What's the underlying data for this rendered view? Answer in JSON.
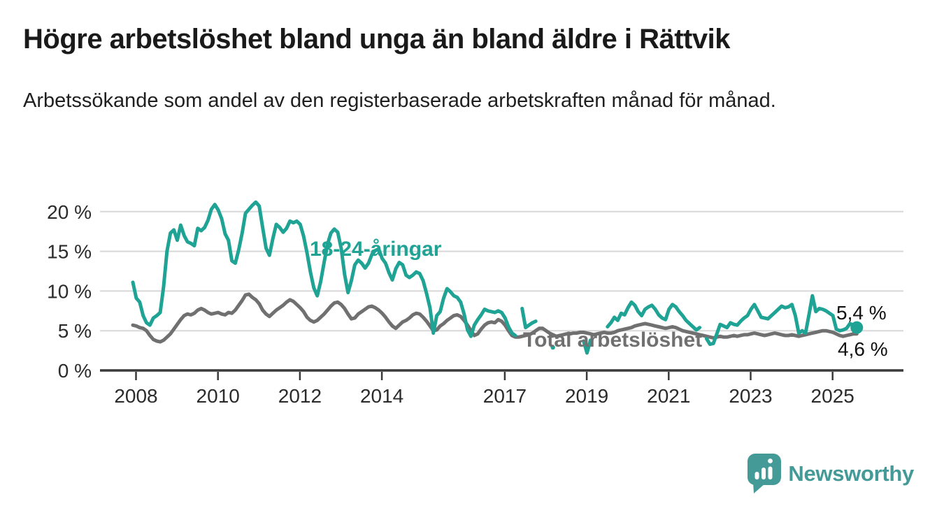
{
  "header": {
    "title": "Högre arbetslöshet bland unga än bland äldre i Rättvik",
    "subtitle": "Arbetssökande som andel av den registerbaserade arbetskraften månad för månad."
  },
  "footer": {
    "brand": "Newsworthy"
  },
  "colors": {
    "youth": "#1fa394",
    "total": "#707070",
    "axis": "#3a3a3a",
    "grid": "#d8d8d8",
    "tick_text": "#2b2b2b",
    "end_label_text": "#111111",
    "logo": "#449a96"
  },
  "chart_data": {
    "type": "line",
    "title": "Högre arbetslöshet bland unga än bland äldre i Rättvik",
    "subtitle": "Arbetssökande som andel av den registerbaserade arbetskraften månad för månad.",
    "frequency": "monthly",
    "x_start": "2008-01",
    "x_end": "2025-09",
    "ylim": [
      0,
      22
    ],
    "grid": true,
    "legend_position": "inline-labels",
    "y_ticks": [
      "0 %",
      "5 %",
      "10 %",
      "15 %",
      "20 %"
    ],
    "y_tick_values": [
      0,
      5,
      10,
      15,
      20
    ],
    "x_tick_years": [
      2008,
      2010,
      2012,
      2014,
      2017,
      2019,
      2021,
      2023,
      2025
    ],
    "series": [
      {
        "name": "Total arbetslöshet",
        "color": "#707070",
        "end_label": "4,6 %",
        "end_value": 4.6,
        "end_dot": false,
        "values": [
          5.7,
          5.6,
          5.4,
          5.3,
          5.0,
          4.4,
          3.9,
          3.7,
          3.6,
          3.8,
          4.2,
          4.6,
          5.2,
          5.8,
          6.4,
          6.9,
          7.1,
          7.0,
          7.2,
          7.6,
          7.8,
          7.6,
          7.3,
          7.1,
          7.2,
          7.3,
          7.1,
          7.0,
          7.3,
          7.2,
          7.6,
          8.2,
          8.8,
          9.5,
          9.6,
          9.2,
          8.9,
          8.4,
          7.6,
          7.1,
          6.8,
          7.2,
          7.6,
          7.9,
          8.2,
          8.6,
          8.9,
          8.7,
          8.3,
          7.9,
          7.4,
          6.7,
          6.3,
          6.1,
          6.3,
          6.7,
          7.1,
          7.6,
          8.1,
          8.5,
          8.6,
          8.3,
          7.8,
          7.1,
          6.5,
          6.6,
          7.1,
          7.4,
          7.7,
          8.0,
          8.1,
          7.9,
          7.6,
          7.2,
          6.7,
          6.1,
          5.6,
          5.3,
          5.7,
          6.1,
          6.3,
          6.6,
          7.0,
          7.2,
          7.1,
          6.7,
          6.2,
          5.6,
          5.0,
          5.1,
          5.6,
          5.9,
          6.3,
          6.6,
          6.9,
          7.0,
          6.8,
          6.3,
          5.7,
          5.0,
          4.4,
          4.6,
          5.2,
          5.7,
          6.0,
          6.1,
          6.0,
          6.4,
          6.2,
          5.7,
          5.0,
          4.4,
          4.2,
          4.2,
          4.3,
          4.4,
          4.5,
          4.7,
          5.0,
          5.3,
          5.3,
          5.0,
          4.7,
          4.5,
          4.3,
          4.4,
          4.5,
          4.6,
          4.6,
          4.7,
          4.7,
          4.8,
          4.8,
          4.7,
          4.6,
          4.5,
          4.6,
          4.7,
          4.8,
          4.7,
          4.7,
          4.8,
          5.0,
          5.1,
          5.2,
          5.3,
          5.4,
          5.6,
          5.7,
          5.8,
          5.9,
          5.8,
          5.7,
          5.6,
          5.5,
          5.4,
          5.3,
          5.4,
          5.5,
          5.4,
          5.2,
          5.0,
          4.9,
          4.8,
          4.7,
          4.6,
          4.5,
          4.4,
          4.3,
          4.2,
          4.1,
          4.2,
          4.3,
          4.2,
          4.2,
          4.3,
          4.4,
          4.3,
          4.4,
          4.5,
          4.5,
          4.6,
          4.7,
          4.6,
          4.5,
          4.4,
          4.5,
          4.6,
          4.7,
          4.6,
          4.5,
          4.4,
          4.4,
          4.5,
          4.4,
          4.3,
          4.4,
          4.5,
          4.6,
          4.7,
          4.8,
          4.9,
          5.0,
          5.0,
          4.9,
          4.8,
          4.6,
          4.4,
          4.3,
          4.4,
          4.5,
          4.6,
          4.6
        ]
      },
      {
        "name": "18-24-åringar",
        "color": "#1fa394",
        "end_label": "5,4 %",
        "end_value": 5.4,
        "end_dot": true,
        "values": [
          11.1,
          9.1,
          8.6,
          6.9,
          6.0,
          5.7,
          6.6,
          6.9,
          7.3,
          10.5,
          15.0,
          17.3,
          17.7,
          16.4,
          18.3,
          17.0,
          16.2,
          16.0,
          15.7,
          17.9,
          17.6,
          18.0,
          18.9,
          20.3,
          20.9,
          20.2,
          19.1,
          17.2,
          16.4,
          13.8,
          13.5,
          15.2,
          17.3,
          19.8,
          20.3,
          20.8,
          21.2,
          20.7,
          18.0,
          15.4,
          14.5,
          16.6,
          18.4,
          18.0,
          17.4,
          17.9,
          18.8,
          18.6,
          18.8,
          18.4,
          16.9,
          14.8,
          12.4,
          10.4,
          9.4,
          11.2,
          13.6,
          15.9,
          17.3,
          17.8,
          17.4,
          15.4,
          12.1,
          9.8,
          11.3,
          13.3,
          13.9,
          13.5,
          12.9,
          13.5,
          14.6,
          15.1,
          15.3,
          14.1,
          13.5,
          12.3,
          11.4,
          12.8,
          13.6,
          13.3,
          12.0,
          11.7,
          12.0,
          12.4,
          12.2,
          11.3,
          9.7,
          7.9,
          4.7,
          6.9,
          7.4,
          9.1,
          10.3,
          9.9,
          9.4,
          9.2,
          8.6,
          7.1,
          5.1,
          4.3,
          5.7,
          6.4,
          7.0,
          7.7,
          7.5,
          7.4,
          7.3,
          7.5,
          7.3,
          6.6,
          5.5,
          4.7,
          4.4,
          null,
          7.8,
          5.4,
          5.7,
          6.0,
          6.2,
          null,
          null,
          null,
          null,
          2.9,
          null,
          null,
          null,
          null,
          null,
          null,
          null,
          null,
          3.7,
          2.2,
          3.8,
          null,
          null,
          null,
          null,
          5.5,
          6.0,
          6.7,
          6.3,
          7.2,
          7.0,
          7.9,
          8.6,
          8.2,
          7.4,
          6.9,
          7.7,
          8.0,
          8.2,
          7.7,
          7.0,
          6.6,
          6.4,
          7.7,
          8.3,
          8.0,
          7.4,
          6.9,
          6.3,
          5.9,
          5.5,
          5.1,
          5.4,
          null,
          4.0,
          3.3,
          3.4,
          4.6,
          5.8,
          5.6,
          5.4,
          6.0,
          5.8,
          5.7,
          6.2,
          6.6,
          6.9,
          7.7,
          8.3,
          7.5,
          6.7,
          6.6,
          6.5,
          6.9,
          7.3,
          7.7,
          8.1,
          7.9,
          8.0,
          8.3,
          6.9,
          4.7,
          5.0,
          4.7,
          7.0,
          9.4,
          7.4,
          7.8,
          7.7,
          7.5,
          7.2,
          6.9,
          5.2,
          5.0,
          5.1,
          5.3,
          5.9,
          5.7,
          5.4
        ]
      }
    ]
  }
}
